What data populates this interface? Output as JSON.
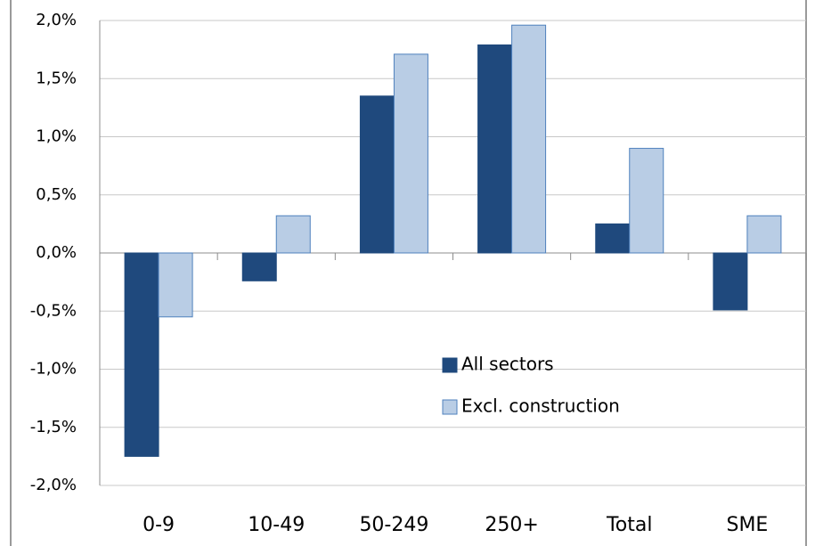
{
  "chart_data": {
    "type": "bar",
    "categories": [
      "0-9",
      "10-49",
      "50-249",
      "250+",
      "Total",
      "SME"
    ],
    "series": [
      {
        "name": "All sectors",
        "color": "#1f497d",
        "values": [
          -1.75,
          -0.24,
          1.35,
          1.79,
          0.25,
          -0.49
        ]
      },
      {
        "name": "Excl. construction",
        "color": "#b9cde5",
        "values": [
          -0.55,
          0.32,
          1.71,
          1.96,
          0.9,
          0.32
        ]
      }
    ],
    "ylim": [
      -2,
      2
    ],
    "yticks": [
      {
        "value": -2,
        "label": "-2,0%"
      },
      {
        "value": -1.5,
        "label": "-1,5%"
      },
      {
        "value": -1,
        "label": "-1,0%"
      },
      {
        "value": -0.5,
        "label": "-0,5%"
      },
      {
        "value": 0,
        "label": "0,0%"
      },
      {
        "value": 0.5,
        "label": "0,5%"
      },
      {
        "value": 1,
        "label": "1,0%"
      },
      {
        "value": 1.5,
        "label": "1,5%"
      },
      {
        "value": 2,
        "label": "2,0%"
      }
    ],
    "grid": true,
    "legend": "center"
  }
}
